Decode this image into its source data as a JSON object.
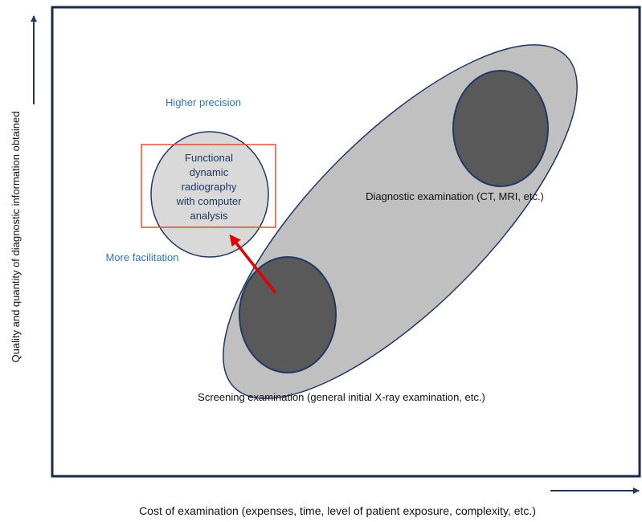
{
  "axes": {
    "y_label": "Quality and quantity of diagnostic information obtained",
    "x_label": "Cost of examination (expenses, time, level of patient exposure, complexity, etc.)"
  },
  "labels": {
    "higher_precision": "Higher precision",
    "more_facilitation": "More facilitation",
    "functional": [
      "Functional",
      "dynamic",
      "radiography",
      "with computer",
      "analysis"
    ],
    "diagnostic": "Diagnostic  examination (CT,  MRI, etc.)",
    "screening": "Screening  examination (general  initial X-ray examination,  etc.)"
  }
}
